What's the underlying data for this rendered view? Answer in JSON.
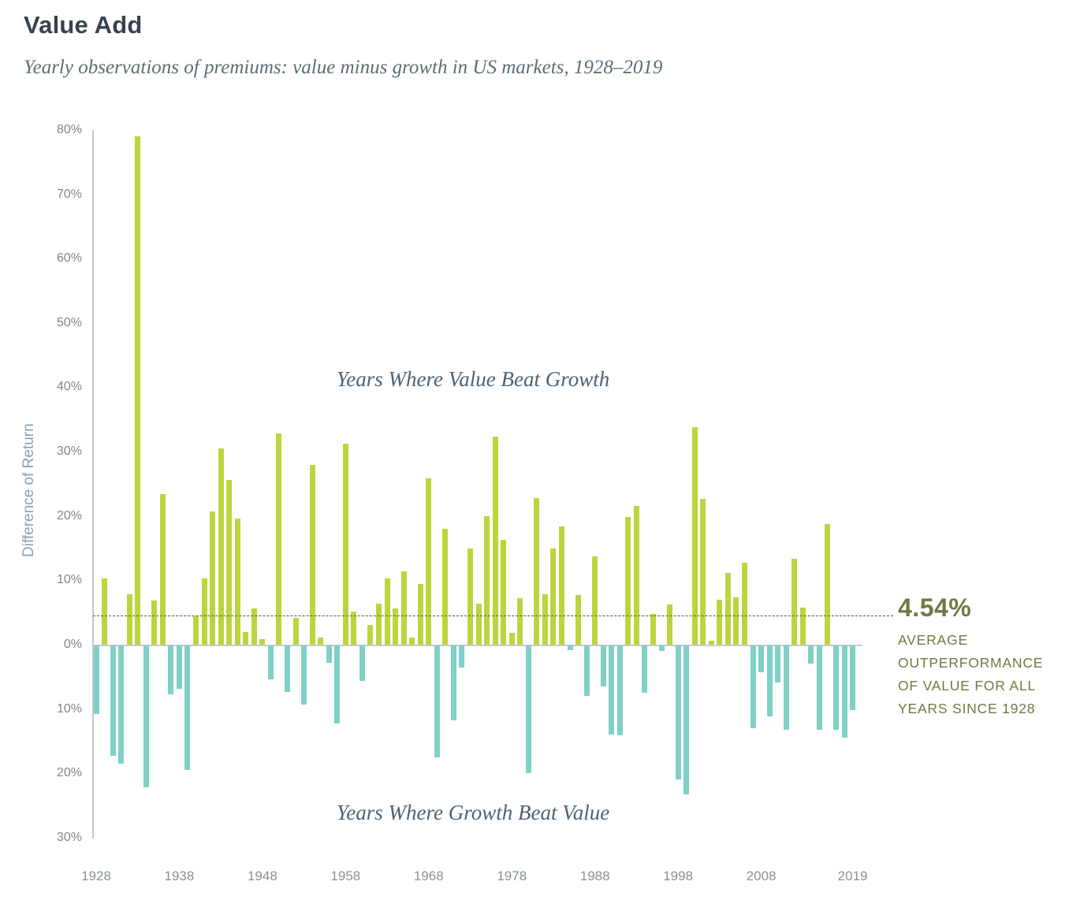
{
  "title": "Value Add",
  "subtitle": "Yearly observations of premiums: value minus growth in US markets, 1928–2019",
  "chart_data": {
    "type": "bar",
    "title": "Value Add",
    "ylabel": "Difference of Return",
    "ylim": [
      -30,
      80
    ],
    "grid": false,
    "years": [
      1928,
      1929,
      1930,
      1931,
      1932,
      1933,
      1934,
      1935,
      1936,
      1937,
      1938,
      1939,
      1940,
      1941,
      1942,
      1943,
      1944,
      1945,
      1946,
      1947,
      1948,
      1949,
      1950,
      1951,
      1952,
      1953,
      1954,
      1955,
      1956,
      1957,
      1958,
      1959,
      1960,
      1961,
      1962,
      1963,
      1964,
      1965,
      1966,
      1967,
      1968,
      1969,
      1970,
      1971,
      1972,
      1973,
      1974,
      1975,
      1976,
      1977,
      1978,
      1979,
      1980,
      1981,
      1982,
      1983,
      1984,
      1985,
      1986,
      1987,
      1988,
      1989,
      1990,
      1991,
      1992,
      1993,
      1994,
      1995,
      1996,
      1997,
      1998,
      1999,
      2000,
      2001,
      2002,
      2003,
      2004,
      2005,
      2006,
      2007,
      2008,
      2009,
      2010,
      2011,
      2012,
      2013,
      2014,
      2015,
      2016,
      2017,
      2018,
      2019
    ],
    "values": [
      -10.6,
      10.3,
      -17.2,
      -18.4,
      7.9,
      79.0,
      -22.0,
      6.9,
      23.4,
      -7.6,
      -6.7,
      -19.4,
      4.4,
      10.3,
      20.7,
      30.5,
      25.6,
      19.6,
      1.9,
      5.6,
      0.9,
      -5.3,
      32.8,
      -7.2,
      4.2,
      -9.2,
      27.9,
      1.1,
      -2.7,
      -12.1,
      31.2,
      5.1,
      -5.5,
      3.1,
      6.4,
      10.3,
      5.6,
      11.4,
      1.1,
      9.4,
      25.9,
      -17.4,
      18.0,
      -11.6,
      -3.4,
      15.0,
      6.4,
      20.0,
      32.3,
      16.3,
      1.8,
      7.2,
      -19.9,
      22.8,
      7.9,
      15.0,
      18.4,
      -0.7,
      7.7,
      -7.8,
      13.7,
      -6.4,
      -13.8,
      -14.0,
      19.9,
      21.5,
      -7.3,
      4.8,
      -0.9,
      6.3,
      -20.8,
      -23.2,
      33.8,
      22.7,
      0.6,
      7.0,
      11.1,
      7.3,
      12.8,
      -12.9,
      -4.2,
      -11.0,
      -5.8,
      -13.1,
      13.3,
      5.8,
      -2.8,
      -13.1,
      18.7,
      -13.1,
      -14.3,
      -10.0
    ],
    "y_ticks": [
      {
        "label": "80%",
        "value": 80
      },
      {
        "label": "70%",
        "value": 70
      },
      {
        "label": "60%",
        "value": 60
      },
      {
        "label": "50%",
        "value": 50
      },
      {
        "label": "40%",
        "value": 40
      },
      {
        "label": "30%",
        "value": 30
      },
      {
        "label": "20%",
        "value": 20
      },
      {
        "label": "10%",
        "value": 10
      },
      {
        "label": "0%",
        "value": 0
      },
      {
        "label": "10%",
        "value": -10
      },
      {
        "label": "20%",
        "value": -20
      },
      {
        "label": "30%",
        "value": -30
      }
    ],
    "x_ticks": [
      {
        "label": "1928",
        "year": 1928
      },
      {
        "label": "1938",
        "year": 1938
      },
      {
        "label": "1948",
        "year": 1948
      },
      {
        "label": "1958",
        "year": 1958
      },
      {
        "label": "1968",
        "year": 1968
      },
      {
        "label": "1978",
        "year": 1978
      },
      {
        "label": "1988",
        "year": 1988
      },
      {
        "label": "1998",
        "year": 1998
      },
      {
        "label": "2008",
        "year": 2008
      },
      {
        "label": "2019",
        "year": 2019
      }
    ],
    "positive_color": "#bcd53e",
    "negative_color": "#7fd0c7",
    "annotations": {
      "positive_zone": "Years Where Value Beat Growth",
      "negative_zone": "Years Where Growth Beat Value"
    },
    "average_line": {
      "value": 4.54,
      "label": "4.54%",
      "caption_lines": [
        "AVERAGE",
        "OUTPERFORMANCE",
        "OF VALUE FOR ALL",
        "YEARS SINCE 1928"
      ]
    }
  }
}
